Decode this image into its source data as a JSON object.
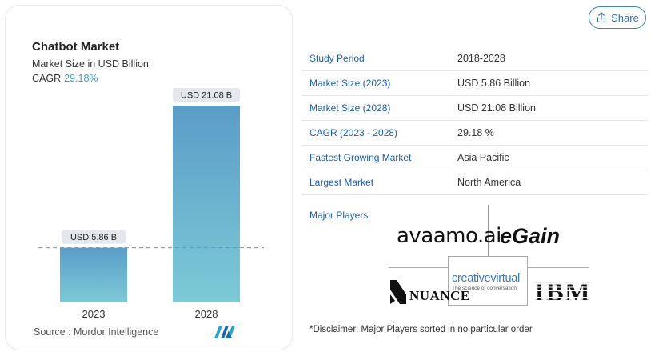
{
  "chart_card": {
    "title": "Chatbot Market",
    "subtitle": "Market Size in USD Billion",
    "cagr_label": "CAGR",
    "cagr_value": "29.18%",
    "source": "Source : Mordor Intelligence",
    "logo_name": "mordor-intelligence-logo"
  },
  "chart_data": {
    "type": "bar",
    "categories": [
      "2023",
      "2028"
    ],
    "values": [
      5.86,
      21.08
    ],
    "data_labels": [
      "USD 5.86 B",
      "USD 21.08 B"
    ],
    "title": "Chatbot Market",
    "ylabel": "Market Size in USD Billion",
    "ylim": [
      0,
      21.08
    ],
    "reference_line_at": 5.86,
    "colors": {
      "bar_top": "#5b9cc8",
      "bar_bottom": "#7ccad7",
      "label_bg": "#e4e7eb",
      "ref_line": "#5b9cc8"
    }
  },
  "share": {
    "label": "Share",
    "icon": "share-icon"
  },
  "table": {
    "rows": [
      {
        "key": "Study Period",
        "value": "2018-2028"
      },
      {
        "key": "Market Size (2023)",
        "value": "USD 5.86 Billion"
      },
      {
        "key": "Market Size (2028)",
        "value": "USD 21.08 Billion"
      },
      {
        "key": "CAGR (2023 - 2028)",
        "value": "29.18 %"
      },
      {
        "key": "Fastest Growing Market",
        "value": "Asia Pacific"
      },
      {
        "key": "Largest Market",
        "value": "North America"
      }
    ]
  },
  "major_players": {
    "label": "Major Players",
    "logos": [
      "avaamo.ai",
      "eGain",
      "NUANCE",
      "creativevirtual",
      "The science of conversation",
      "IBM"
    ]
  },
  "disclaimer": "*Disclaimer: Major Players sorted in no particular order",
  "colors": {
    "accent": "#1d5ea8",
    "share_border": "#3a85c2",
    "cagr": "#3a9ec2"
  }
}
